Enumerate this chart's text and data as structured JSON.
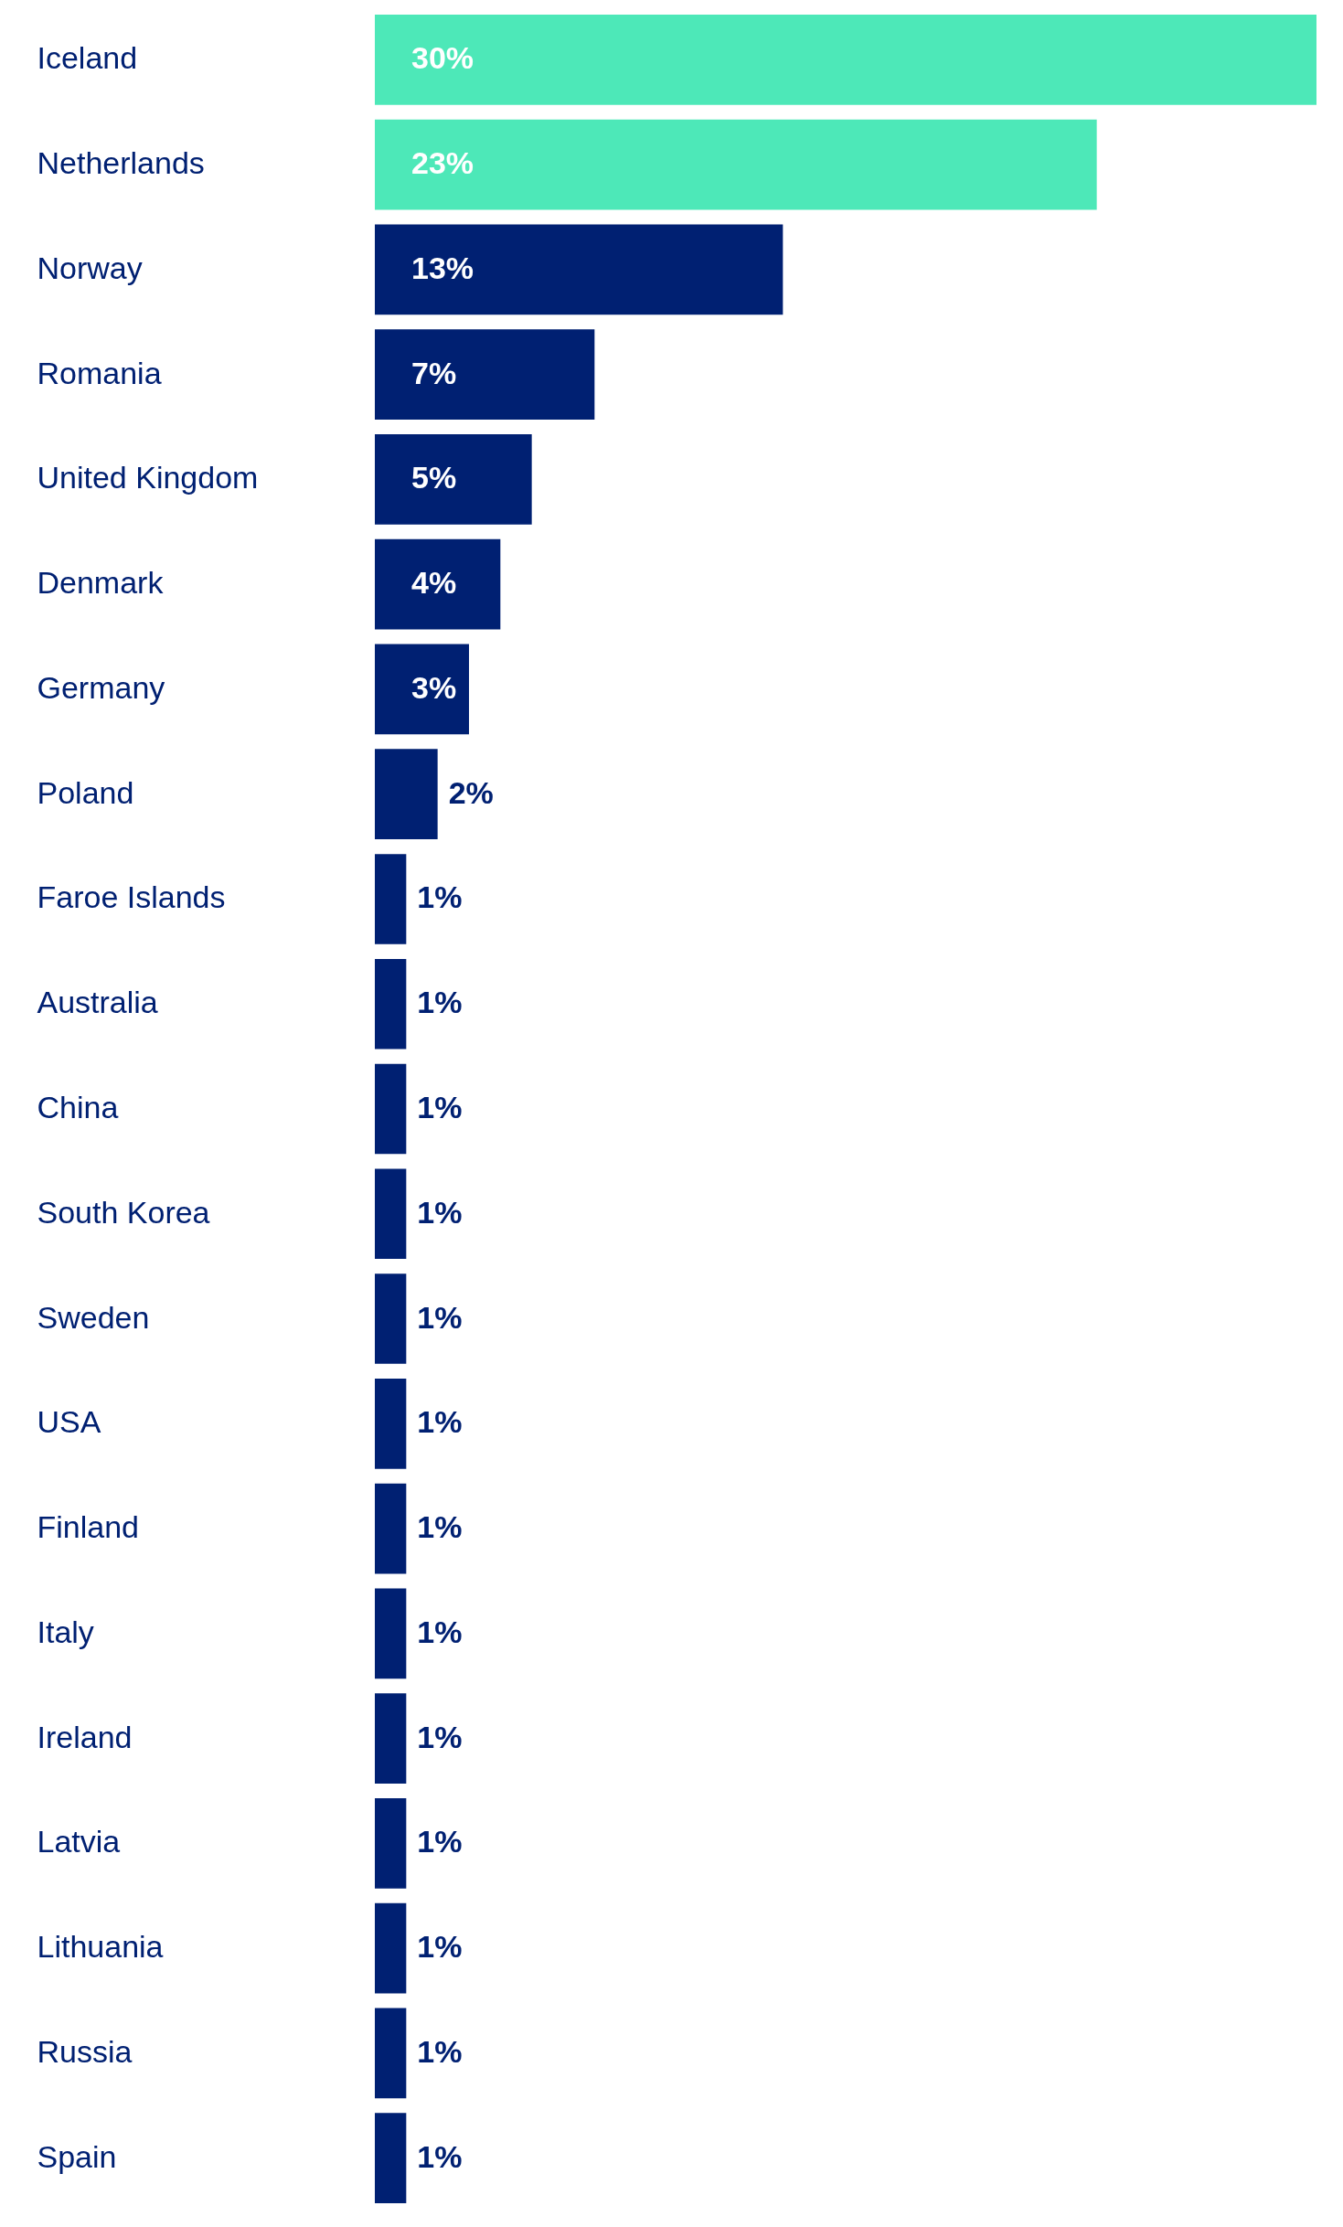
{
  "chart_data": {
    "type": "bar",
    "orientation": "horizontal",
    "grid": false,
    "categories": [
      "Iceland",
      "Netherlands",
      "Norway",
      "Romania",
      "United Kingdom",
      "Denmark",
      "Germany",
      "Poland",
      "Faroe Islands",
      "Australia",
      "China",
      "South Korea",
      "Sweden",
      "USA",
      "Finland",
      "Italy",
      "Ireland",
      "Latvia",
      "Lithuania",
      "Russia",
      "Spain"
    ],
    "values": [
      30,
      23,
      13,
      7,
      5,
      4,
      3,
      2,
      1,
      1,
      1,
      1,
      1,
      1,
      1,
      1,
      1,
      1,
      1,
      1,
      1
    ],
    "value_labels": [
      "30%",
      "23%",
      "13%",
      "7%",
      "5%",
      "4%",
      "3%",
      "2%",
      "1%",
      "1%",
      "1%",
      "1%",
      "1%",
      "1%",
      "1%",
      "1%",
      "1%",
      "1%",
      "1%",
      "1%",
      "1%"
    ],
    "colors": [
      "#4de8b8",
      "#4de8b8",
      "#002072",
      "#002072",
      "#002072",
      "#002072",
      "#002072",
      "#002072",
      "#002072",
      "#002072",
      "#002072",
      "#002072",
      "#002072",
      "#002072",
      "#002072",
      "#002072",
      "#002072",
      "#002072",
      "#002072",
      "#002072",
      "#002072"
    ]
  }
}
